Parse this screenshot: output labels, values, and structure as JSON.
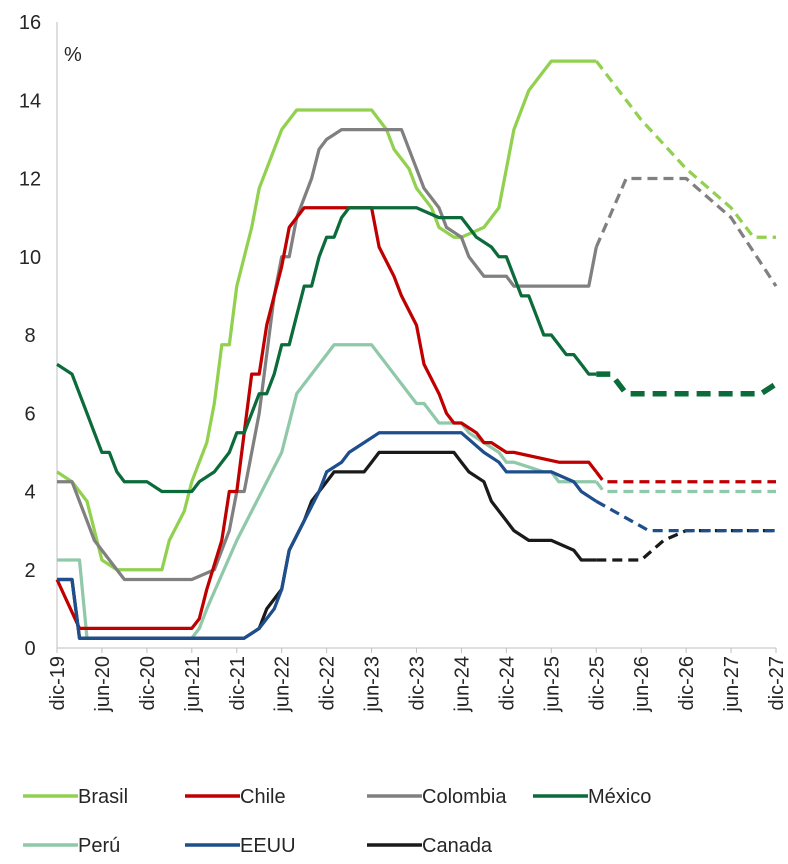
{
  "chart_data": {
    "type": "line",
    "unit_label": "%",
    "ylim": [
      0,
      16
    ],
    "yticks": [
      0,
      2,
      4,
      6,
      8,
      10,
      12,
      14,
      16
    ],
    "xlim": [
      "dic-19",
      "dic-27"
    ],
    "xticks": [
      "dic-19",
      "jun-20",
      "dic-20",
      "jun-21",
      "dic-21",
      "jun-22",
      "dic-22",
      "jun-23",
      "dic-23",
      "jun-24",
      "dic-24",
      "jun-25",
      "dic-25",
      "jun-26",
      "dic-26",
      "jun-27",
      "dic-27"
    ],
    "grid": false,
    "legend_position": "bottom",
    "forecast_note": "dashed segments are projections",
    "series": [
      {
        "name": "Brasil",
        "color": "#92D050",
        "actual": [
          [
            "dic-19",
            4.5
          ],
          [
            "feb-20",
            4.25
          ],
          [
            "abr-20",
            3.75
          ],
          [
            "jun-20",
            2.25
          ],
          [
            "ago-20",
            2.0
          ],
          [
            "dic-20",
            2.0
          ],
          [
            "feb-21",
            2.0
          ],
          [
            "mar-21",
            2.75
          ],
          [
            "may-21",
            3.5
          ],
          [
            "jun-21",
            4.25
          ],
          [
            "ago-21",
            5.25
          ],
          [
            "sep-21",
            6.25
          ],
          [
            "oct-21",
            7.75
          ],
          [
            "nov-21",
            7.75
          ],
          [
            "dic-21",
            9.25
          ],
          [
            "feb-22",
            10.75
          ],
          [
            "mar-22",
            11.75
          ],
          [
            "may-22",
            12.75
          ],
          [
            "jun-22",
            13.25
          ],
          [
            "ago-22",
            13.75
          ],
          [
            "dic-22",
            13.75
          ],
          [
            "jun-23",
            13.75
          ],
          [
            "ago-23",
            13.25
          ],
          [
            "sep-23",
            12.75
          ],
          [
            "nov-23",
            12.25
          ],
          [
            "dic-23",
            11.75
          ],
          [
            "feb-24",
            11.25
          ],
          [
            "mar-24",
            10.75
          ],
          [
            "may-24",
            10.5
          ],
          [
            "jun-24",
            10.5
          ],
          [
            "sep-24",
            10.75
          ],
          [
            "nov-24",
            11.25
          ],
          [
            "dic-24",
            12.25
          ],
          [
            "ene-25",
            13.25
          ],
          [
            "mar-25",
            14.25
          ],
          [
            "may-25",
            14.75
          ],
          [
            "jun-25",
            15.0
          ],
          [
            "dic-25",
            15.0
          ]
        ],
        "forecast": [
          [
            "dic-25",
            15.0
          ],
          [
            "jun-26",
            13.5
          ],
          [
            "dic-26",
            12.25
          ],
          [
            "jun-27",
            11.25
          ],
          [
            "sep-27",
            10.5
          ],
          [
            "dic-27",
            10.5
          ]
        ]
      },
      {
        "name": "Chile",
        "color": "#C00000",
        "actual": [
          [
            "dic-19",
            1.75
          ],
          [
            "mar-20",
            0.5
          ],
          [
            "dic-20",
            0.5
          ],
          [
            "jun-21",
            0.5
          ],
          [
            "jul-21",
            0.75
          ],
          [
            "ago-21",
            1.5
          ],
          [
            "oct-21",
            2.75
          ],
          [
            "nov-21",
            4.0
          ],
          [
            "dic-21",
            4.0
          ],
          [
            "ene-22",
            5.5
          ],
          [
            "feb-22",
            7.0
          ],
          [
            "mar-22",
            7.0
          ],
          [
            "abr-22",
            8.25
          ],
          [
            "may-22",
            9.0
          ],
          [
            "jun-22",
            9.75
          ],
          [
            "jul-22",
            10.75
          ],
          [
            "sep-22",
            11.25
          ],
          [
            "dic-22",
            11.25
          ],
          [
            "jun-23",
            11.25
          ],
          [
            "jul-23",
            10.25
          ],
          [
            "sep-23",
            9.5
          ],
          [
            "oct-23",
            9.0
          ],
          [
            "dic-23",
            8.25
          ],
          [
            "ene-24",
            7.25
          ],
          [
            "mar-24",
            6.5
          ],
          [
            "abr-24",
            6.0
          ],
          [
            "may-24",
            5.75
          ],
          [
            "jun-24",
            5.75
          ],
          [
            "ago-24",
            5.5
          ],
          [
            "sep-24",
            5.25
          ],
          [
            "oct-24",
            5.25
          ],
          [
            "dic-24",
            5.0
          ],
          [
            "ene-25",
            5.0
          ],
          [
            "jul-25",
            4.75
          ],
          [
            "nov-25",
            4.75
          ],
          [
            "dic-25",
            4.5
          ]
        ],
        "forecast": [
          [
            "dic-25",
            4.5
          ],
          [
            "ene-26",
            4.25
          ],
          [
            "dic-27",
            4.25
          ]
        ]
      },
      {
        "name": "Colombia",
        "color": "#808080",
        "actual": [
          [
            "dic-19",
            4.25
          ],
          [
            "feb-20",
            4.25
          ],
          [
            "mar-20",
            3.75
          ],
          [
            "abr-20",
            3.25
          ],
          [
            "may-20",
            2.75
          ],
          [
            "jul-20",
            2.25
          ],
          [
            "sep-20",
            1.75
          ],
          [
            "dic-20",
            1.75
          ],
          [
            "jun-21",
            1.75
          ],
          [
            "sep-21",
            2.0
          ],
          [
            "oct-21",
            2.5
          ],
          [
            "nov-21",
            3.0
          ],
          [
            "dic-21",
            4.0
          ],
          [
            "ene-22",
            4.0
          ],
          [
            "feb-22",
            5.0
          ],
          [
            "mar-22",
            6.0
          ],
          [
            "abr-22",
            7.5
          ],
          [
            "may-22",
            9.0
          ],
          [
            "jun-22",
            10.0
          ],
          [
            "jul-22",
            10.0
          ],
          [
            "ago-22",
            11.0
          ],
          [
            "oct-22",
            12.0
          ],
          [
            "nov-22",
            12.75
          ],
          [
            "dic-22",
            13.0
          ],
          [
            "feb-23",
            13.25
          ],
          [
            "jun-23",
            13.25
          ],
          [
            "oct-23",
            13.25
          ],
          [
            "nov-23",
            12.75
          ],
          [
            "dic-23",
            12.25
          ],
          [
            "ene-24",
            11.75
          ],
          [
            "mar-24",
            11.25
          ],
          [
            "abr-24",
            10.75
          ],
          [
            "jun-24",
            10.5
          ],
          [
            "jul-24",
            10.0
          ],
          [
            "ago-24",
            9.75
          ],
          [
            "sep-24",
            9.5
          ],
          [
            "dic-24",
            9.5
          ],
          [
            "ene-25",
            9.25
          ],
          [
            "abr-25",
            9.25
          ],
          [
            "nov-25",
            9.25
          ],
          [
            "dic-25",
            10.25
          ]
        ],
        "forecast": [
          [
            "dic-25",
            10.25
          ],
          [
            "abr-26",
            12.0
          ],
          [
            "dic-26",
            12.0
          ],
          [
            "jun-27",
            11.0
          ],
          [
            "dic-27",
            9.25
          ]
        ]
      },
      {
        "name": "México",
        "color": "#0B6B3A",
        "actual": [
          [
            "dic-19",
            7.25
          ],
          [
            "feb-20",
            7.0
          ],
          [
            "mar-20",
            6.5
          ],
          [
            "abr-20",
            6.0
          ],
          [
            "may-20",
            5.5
          ],
          [
            "jun-20",
            5.0
          ],
          [
            "jul-20",
            5.0
          ],
          [
            "ago-20",
            4.5
          ],
          [
            "sep-20",
            4.25
          ],
          [
            "dic-20",
            4.25
          ],
          [
            "feb-21",
            4.0
          ],
          [
            "jun-21",
            4.0
          ],
          [
            "jul-21",
            4.25
          ],
          [
            "sep-21",
            4.5
          ],
          [
            "oct-21",
            4.75
          ],
          [
            "nov-21",
            5.0
          ],
          [
            "dic-21",
            5.5
          ],
          [
            "ene-22",
            5.5
          ],
          [
            "feb-22",
            6.0
          ],
          [
            "mar-22",
            6.5
          ],
          [
            "abr-22",
            6.5
          ],
          [
            "may-22",
            7.0
          ],
          [
            "jun-22",
            7.75
          ],
          [
            "jul-22",
            7.75
          ],
          [
            "ago-22",
            8.5
          ],
          [
            "sep-22",
            9.25
          ],
          [
            "oct-22",
            9.25
          ],
          [
            "nov-22",
            10.0
          ],
          [
            "dic-22",
            10.5
          ],
          [
            "ene-23",
            10.5
          ],
          [
            "feb-23",
            11.0
          ],
          [
            "mar-23",
            11.25
          ],
          [
            "dic-23",
            11.25
          ],
          [
            "mar-24",
            11.0
          ],
          [
            "jun-24",
            11.0
          ],
          [
            "jul-24",
            10.75
          ],
          [
            "ago-24",
            10.5
          ],
          [
            "oct-24",
            10.25
          ],
          [
            "nov-24",
            10.0
          ],
          [
            "dic-24",
            10.0
          ],
          [
            "ene-25",
            9.5
          ],
          [
            "feb-25",
            9.0
          ],
          [
            "mar-25",
            9.0
          ],
          [
            "abr-25",
            8.5
          ],
          [
            "may-25",
            8.0
          ],
          [
            "jun-25",
            8.0
          ],
          [
            "jul-25",
            7.75
          ],
          [
            "ago-25",
            7.5
          ],
          [
            "sep-25",
            7.5
          ],
          [
            "oct-25",
            7.25
          ],
          [
            "nov-25",
            7.0
          ],
          [
            "dic-25",
            7.0
          ]
        ],
        "forecast": [
          [
            "dic-25",
            7.0
          ],
          [
            "feb-26",
            7.0
          ],
          [
            "abr-26",
            6.5
          ],
          [
            "oct-27",
            6.5
          ],
          [
            "dic-27",
            6.75
          ]
        ]
      },
      {
        "name": "Perú",
        "color": "#8FC9A9",
        "actual": [
          [
            "dic-19",
            2.25
          ],
          [
            "mar-20",
            2.25
          ],
          [
            "abr-20",
            0.25
          ],
          [
            "dic-20",
            0.25
          ],
          [
            "jun-21",
            0.25
          ],
          [
            "jul-21",
            0.5
          ],
          [
            "ago-21",
            1.0
          ],
          [
            "dic-21",
            2.75
          ],
          [
            "jun-22",
            5.0
          ],
          [
            "ago-22",
            6.5
          ],
          [
            "nov-22",
            7.25
          ],
          [
            "dic-22",
            7.5
          ],
          [
            "ene-23",
            7.75
          ],
          [
            "jun-23",
            7.75
          ],
          [
            "ago-23",
            7.25
          ],
          [
            "oct-23",
            6.75
          ],
          [
            "nov-23",
            6.5
          ],
          [
            "dic-23",
            6.25
          ],
          [
            "ene-24",
            6.25
          ],
          [
            "mar-24",
            5.75
          ],
          [
            "jun-24",
            5.75
          ],
          [
            "jul-24",
            5.5
          ],
          [
            "sep-24",
            5.25
          ],
          [
            "nov-24",
            5.0
          ],
          [
            "dic-24",
            4.75
          ],
          [
            "ene-25",
            4.75
          ],
          [
            "may-25",
            4.5
          ],
          [
            "jun-25",
            4.5
          ],
          [
            "jul-25",
            4.25
          ],
          [
            "dic-25",
            4.25
          ]
        ],
        "forecast": [
          [
            "dic-25",
            4.25
          ],
          [
            "ene-26",
            4.0
          ],
          [
            "dic-27",
            4.0
          ]
        ]
      },
      {
        "name": "EEUU",
        "color": "#1F4E8C",
        "actual": [
          [
            "dic-19",
            1.75
          ],
          [
            "feb-20",
            1.75
          ],
          [
            "mar-20",
            0.25
          ],
          [
            "dic-20",
            0.25
          ],
          [
            "jun-21",
            0.25
          ],
          [
            "dic-21",
            0.25
          ],
          [
            "ene-22",
            0.25
          ],
          [
            "mar-22",
            0.5
          ],
          [
            "may-22",
            1.0
          ],
          [
            "jun-22",
            1.5
          ],
          [
            "jul-22",
            2.5
          ],
          [
            "sep-22",
            3.25
          ],
          [
            "nov-22",
            4.0
          ],
          [
            "dic-22",
            4.5
          ],
          [
            "feb-23",
            4.75
          ],
          [
            "mar-23",
            5.0
          ],
          [
            "may-23",
            5.25
          ],
          [
            "jul-23",
            5.5
          ],
          [
            "dic-23",
            5.5
          ],
          [
            "jun-24",
            5.5
          ],
          [
            "sep-24",
            5.0
          ],
          [
            "nov-24",
            4.75
          ],
          [
            "dic-24",
            4.5
          ],
          [
            "jun-25",
            4.5
          ],
          [
            "sep-25",
            4.25
          ],
          [
            "oct-25",
            4.0
          ],
          [
            "dic-25",
            3.75
          ]
        ],
        "forecast": [
          [
            "dic-25",
            3.75
          ],
          [
            "jul-26",
            3.0
          ],
          [
            "dic-27",
            3.0
          ]
        ]
      },
      {
        "name": "Canada",
        "color": "#1A1A1A",
        "actual": [
          [
            "dic-19",
            1.75
          ],
          [
            "feb-20",
            1.75
          ],
          [
            "mar-20",
            0.25
          ],
          [
            "dic-20",
            0.25
          ],
          [
            "jun-21",
            0.25
          ],
          [
            "dic-21",
            0.25
          ],
          [
            "ene-22",
            0.25
          ],
          [
            "mar-22",
            0.5
          ],
          [
            "abr-22",
            1.0
          ],
          [
            "jun-22",
            1.5
          ],
          [
            "jul-22",
            2.5
          ],
          [
            "sep-22",
            3.25
          ],
          [
            "oct-22",
            3.75
          ],
          [
            "dic-22",
            4.25
          ],
          [
            "ene-23",
            4.5
          ],
          [
            "may-23",
            4.5
          ],
          [
            "jun-23",
            4.75
          ],
          [
            "jul-23",
            5.0
          ],
          [
            "dic-23",
            5.0
          ],
          [
            "may-24",
            5.0
          ],
          [
            "jun-24",
            4.75
          ],
          [
            "jul-24",
            4.5
          ],
          [
            "sep-24",
            4.25
          ],
          [
            "oct-24",
            3.75
          ],
          [
            "dic-24",
            3.25
          ],
          [
            "ene-25",
            3.0
          ],
          [
            "mar-25",
            2.75
          ],
          [
            "jun-25",
            2.75
          ],
          [
            "sep-25",
            2.5
          ],
          [
            "oct-25",
            2.25
          ],
          [
            "dic-25",
            2.25
          ]
        ],
        "forecast": [
          [
            "dic-25",
            2.25
          ],
          [
            "jun-26",
            2.25
          ],
          [
            "sep-26",
            2.75
          ],
          [
            "dic-26",
            3.0
          ],
          [
            "dic-27",
            3.0
          ]
        ]
      }
    ]
  }
}
